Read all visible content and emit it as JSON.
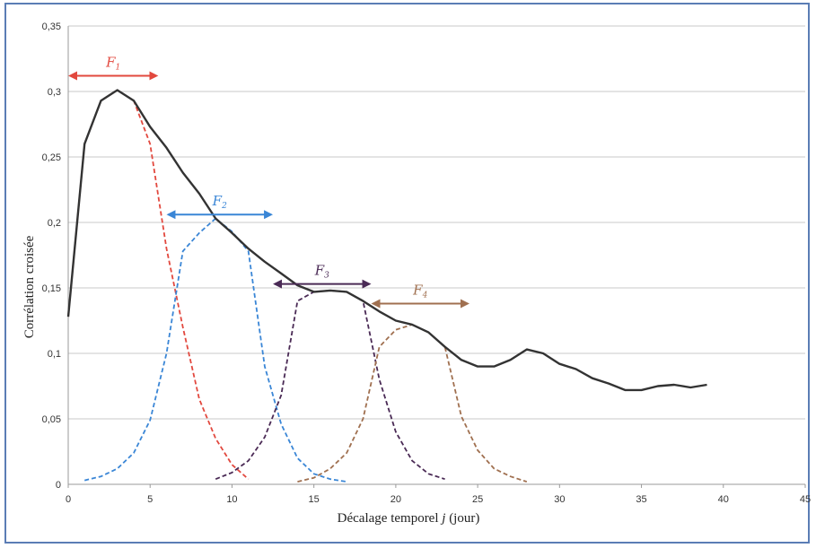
{
  "chart_data": {
    "type": "line",
    "xlabel": "Décalage temporel j (jour)",
    "xlabel_main": "Décalage temporel ",
    "xlabel_var": "j",
    "xlabel_unit": " (jour)",
    "ylabel": "Corrélation croisée",
    "xlim": [
      0,
      45
    ],
    "ylim": [
      0,
      0.35
    ],
    "x_ticks": [
      "0",
      "5",
      "10",
      "15",
      "20",
      "25",
      "30",
      "35",
      "40",
      "45"
    ],
    "y_ticks": [
      "0",
      "0,05",
      "0,1",
      "0,15",
      "0,2",
      "0,25",
      "0,3",
      "0,35"
    ],
    "grid": "horizontal",
    "series": [
      {
        "role": "cross-correlation",
        "style": "solid",
        "color": "#333333",
        "x": [
          0,
          1,
          2,
          3,
          4,
          5,
          6,
          7,
          8,
          9,
          10,
          11,
          12,
          13,
          14,
          15,
          16,
          17,
          18,
          19,
          20,
          21,
          22,
          23,
          24,
          25,
          26,
          27,
          28,
          29,
          30,
          31,
          32,
          33,
          34,
          35,
          36,
          37,
          38,
          39
        ],
        "y": [
          0.128,
          0.26,
          0.293,
          0.301,
          0.293,
          0.273,
          0.257,
          0.238,
          0.222,
          0.203,
          0.192,
          0.18,
          0.17,
          0.161,
          0.152,
          0.147,
          0.148,
          0.147,
          0.14,
          0.132,
          0.125,
          0.122,
          0.116,
          0.105,
          0.095,
          0.09,
          0.09,
          0.095,
          0.103,
          0.1,
          0.092,
          0.088,
          0.081,
          0.077,
          0.072,
          0.072,
          0.075,
          0.076,
          0.074,
          0.076
        ]
      },
      {
        "role": "family-1",
        "style": "dashed",
        "color": "#e2483e",
        "x": [
          0,
          1,
          2,
          3,
          4,
          5,
          6,
          7,
          8,
          9,
          10,
          11
        ],
        "y": [
          0.128,
          0.26,
          0.293,
          0.301,
          0.293,
          0.26,
          0.18,
          0.12,
          0.065,
          0.035,
          0.015,
          0.004
        ]
      },
      {
        "role": "family-2",
        "style": "dashed",
        "color": "#3a86d6",
        "x": [
          1,
          2,
          3,
          4,
          5,
          6,
          7,
          8,
          9,
          10,
          11,
          12,
          13,
          14,
          15,
          16,
          17
        ],
        "y": [
          0.003,
          0.006,
          0.012,
          0.024,
          0.049,
          0.1,
          0.178,
          0.192,
          0.203,
          0.193,
          0.178,
          0.09,
          0.046,
          0.02,
          0.008,
          0.004,
          0.002
        ]
      },
      {
        "role": "family-3",
        "style": "dashed",
        "color": "#4a2a55",
        "x": [
          9,
          10,
          11,
          12,
          13,
          14,
          15,
          16,
          17,
          18,
          19,
          20,
          21,
          22,
          23
        ],
        "y": [
          0.004,
          0.009,
          0.018,
          0.036,
          0.068,
          0.14,
          0.147,
          0.148,
          0.147,
          0.14,
          0.08,
          0.04,
          0.018,
          0.008,
          0.004
        ]
      },
      {
        "role": "family-4",
        "style": "dashed",
        "color": "#a07050",
        "x": [
          14,
          15,
          16,
          17,
          18,
          19,
          20,
          21,
          22,
          23,
          24,
          25,
          26,
          27,
          28
        ],
        "y": [
          0.002,
          0.005,
          0.012,
          0.024,
          0.05,
          0.105,
          0.118,
          0.122,
          0.116,
          0.105,
          0.052,
          0.026,
          0.012,
          0.006,
          0.002
        ]
      }
    ],
    "annotations": [
      {
        "label": "F",
        "sub": "1",
        "color": "#e2483e",
        "x_from": 0,
        "x_to": 5.5,
        "y": 0.312
      },
      {
        "label": "F",
        "sub": "2",
        "color": "#3a86d6",
        "x_from": 6,
        "x_to": 12.5,
        "y": 0.206
      },
      {
        "label": "F",
        "sub": "3",
        "color": "#4a2a55",
        "x_from": 12.5,
        "x_to": 18.5,
        "y": 0.153
      },
      {
        "label": "F",
        "sub": "4",
        "color": "#a07050",
        "x_from": 18.5,
        "x_to": 24.5,
        "y": 0.138
      }
    ]
  }
}
